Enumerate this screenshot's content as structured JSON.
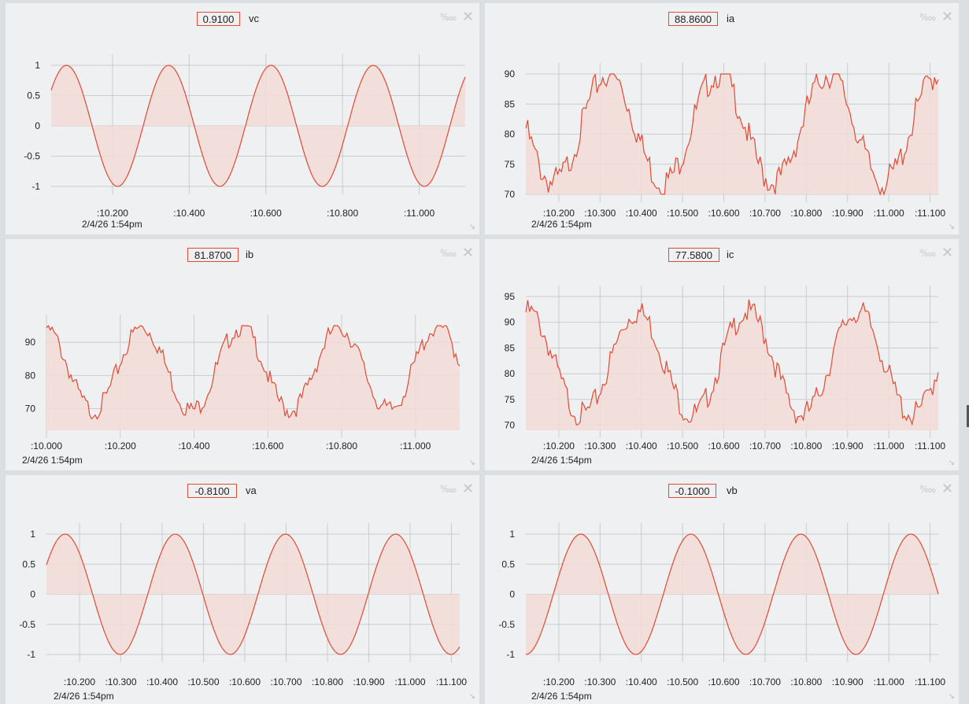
{
  "timestamp": "2/4/26 1:54pm",
  "panels": [
    {
      "id": "vc",
      "label": "vc",
      "value": "0.9100",
      "yticks": [
        "1",
        "0.5",
        "0",
        "-0.5",
        "-1"
      ],
      "xticks": [
        ":10.200",
        ":10.400",
        ":10.600",
        ":10.800",
        ":11.000"
      ],
      "chart_data": {
        "type": "area",
        "ylim": [
          -1,
          1
        ],
        "xlim": [
          10.04,
          11.12
        ],
        "wave": {
          "kind": "sine",
          "amplitude": 1,
          "period_s": 0.2667,
          "phase_peak_at": 10.08
        },
        "series": [
          {
            "values_sample": [
              0.6,
              1.0,
              0.0,
              -1.0,
              0.0,
              1.0,
              0.0,
              -1.0,
              0.0,
              1.0,
              0.0,
              -1.0,
              0.0,
              1.0,
              0.0,
              -1.0,
              0.9
            ]
          }
        ],
        "fill_to": 0
      }
    },
    {
      "id": "ia",
      "label": "ia",
      "value": "88.8600",
      "yticks": [
        "90",
        "85",
        "80",
        "75",
        "70"
      ],
      "xticks": [
        ":10.200",
        ":10.300",
        ":10.400",
        ":10.500",
        ":10.600",
        ":10.700",
        ":10.800",
        ":10.900",
        ":11.000",
        ":11.100"
      ],
      "chart_data": {
        "type": "area",
        "ylim": [
          70,
          90
        ],
        "xlim": [
          10.12,
          11.12
        ],
        "series": [
          {
            "values_sample": [
              90.5,
              82,
              78,
              72,
              77,
              86,
              90,
              82,
              76,
              72,
              80,
              88,
              91,
              80,
              75,
              72,
              80,
              88,
              91,
              82,
              76,
              72,
              80,
              88
            ]
          }
        ],
        "fill_to": 70
      }
    },
    {
      "id": "ib",
      "label": "ib",
      "value": "81.8700",
      "yticks": [
        "90",
        "80",
        "70"
      ],
      "xticks": [
        ":10.000",
        ":10.200",
        ":10.400",
        ":10.600",
        ":10.800",
        ":11.000"
      ],
      "chart_data": {
        "type": "area",
        "ylim": [
          63.5,
          95
        ],
        "xlim": [
          10.0,
          11.12
        ],
        "series": [
          {
            "values_sample": [
              95,
              82,
              71,
              70,
              85,
              94,
              81,
              71,
              68,
              85,
              95,
              81,
              71,
              70,
              84,
              94,
              81,
              70,
              71,
              84,
              94,
              82
            ]
          }
        ],
        "fill_to": 63.5
      }
    },
    {
      "id": "ic",
      "label": "ic",
      "value": "77.5800",
      "yticks": [
        "95",
        "90",
        "85",
        "80",
        "75",
        "70"
      ],
      "xticks": [
        ":10.200",
        ":10.300",
        ":10.400",
        ":10.500",
        ":10.600",
        ":10.700",
        ":10.800",
        ":10.900",
        ":11.000",
        ":11.100"
      ],
      "chart_data": {
        "type": "area",
        "ylim": [
          69,
          95
        ],
        "xlim": [
          10.12,
          11.12
        ],
        "series": [
          {
            "values_sample": [
              88,
              93,
              86,
              78,
              72,
              78,
              84,
              92,
              86,
              76,
              73,
              78,
              84,
              92,
              86,
              78,
              72,
              76,
              82,
              93,
              86,
              78,
              72,
              77.6
            ]
          }
        ],
        "fill_to": 69
      }
    },
    {
      "id": "va",
      "label": "va",
      "value": "-0.8100",
      "yticks": [
        "1",
        "0.5",
        "0",
        "-0.5",
        "-1"
      ],
      "xticks": [
        ":10.200",
        ":10.300",
        ":10.400",
        ":10.500",
        ":10.600",
        ":10.700",
        ":10.800",
        ":10.900",
        ":11.000",
        ":11.100"
      ],
      "chart_data": {
        "type": "area",
        "ylim": [
          -1,
          1
        ],
        "xlim": [
          10.12,
          11.12
        ],
        "series": [
          {
            "values_sample": [
              0.1,
              1.0,
              0.0,
              -1.0,
              0.0,
              1.0,
              0.0,
              -1.0,
              0.0,
              1.0,
              0.0,
              -1.0,
              0.0,
              1.0,
              0.0,
              -1.0,
              -0.81
            ]
          }
        ],
        "fill_to": 0
      }
    },
    {
      "id": "vb",
      "label": "vb",
      "value": "-0.1000",
      "yticks": [
        "1",
        "0.5",
        "0",
        "-0.5",
        "-1"
      ],
      "xticks": [
        ":10.200",
        ":10.300",
        ":10.400",
        ":10.500",
        ":10.600",
        ":10.700",
        ":10.800",
        ":10.900",
        ":11.000",
        ":11.100"
      ],
      "chart_data": {
        "type": "area",
        "ylim": [
          -1,
          1
        ],
        "xlim": [
          10.12,
          11.12
        ],
        "series": [
          {
            "values_sample": [
              -0.9,
              0.0,
              1.0,
              0.0,
              -1.0,
              0.0,
              1.0,
              0.0,
              -1.0,
              0.0,
              1.0,
              0.0,
              -1.0,
              0.0,
              1.0,
              -0.1
            ]
          }
        ],
        "fill_to": 0
      }
    }
  ],
  "icons": {
    "permil": "%oo",
    "close": "close-icon",
    "resize": "resize-icon"
  },
  "colors": {
    "line": "#e24a33",
    "fill": "#f2dcd8",
    "grid": "#c9cdd0",
    "background": "#eef0f1"
  }
}
